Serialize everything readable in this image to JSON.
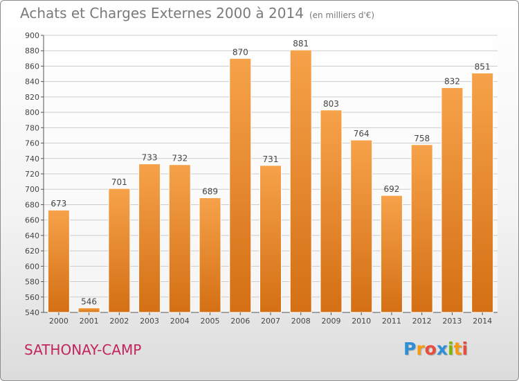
{
  "title": "Achats et Charges Externes 2000 à 2014",
  "unit": "(en milliers d'€)",
  "location": "SATHONAY-CAMP",
  "logo": {
    "letters": [
      "P",
      "r",
      "o",
      "x",
      "i",
      "t",
      "i"
    ],
    "colors": [
      "#2e8fd6",
      "#f39c12",
      "#e74c3c",
      "#2e8fd6",
      "#7ab800",
      "#f39c12",
      "#e74c3c"
    ]
  },
  "colors": {
    "bar_light": "#f6a24a",
    "bar_dark": "#d46f14",
    "grid": "#cccccc",
    "axis": "#555555"
  },
  "chart_data": {
    "type": "bar",
    "categories": [
      "2000",
      "2001",
      "2002",
      "2003",
      "2004",
      "2005",
      "2006",
      "2007",
      "2008",
      "2009",
      "2010",
      "2011",
      "2012",
      "2013",
      "2014"
    ],
    "values": [
      673,
      546,
      701,
      733,
      732,
      689,
      870,
      731,
      881,
      803,
      764,
      692,
      758,
      832,
      851
    ],
    "ylim": [
      540,
      900
    ],
    "yticks": [
      540,
      560,
      580,
      600,
      620,
      640,
      660,
      680,
      700,
      720,
      740,
      760,
      780,
      800,
      820,
      840,
      860,
      880,
      900
    ],
    "grid": true,
    "xlabel": "",
    "ylabel": ""
  }
}
